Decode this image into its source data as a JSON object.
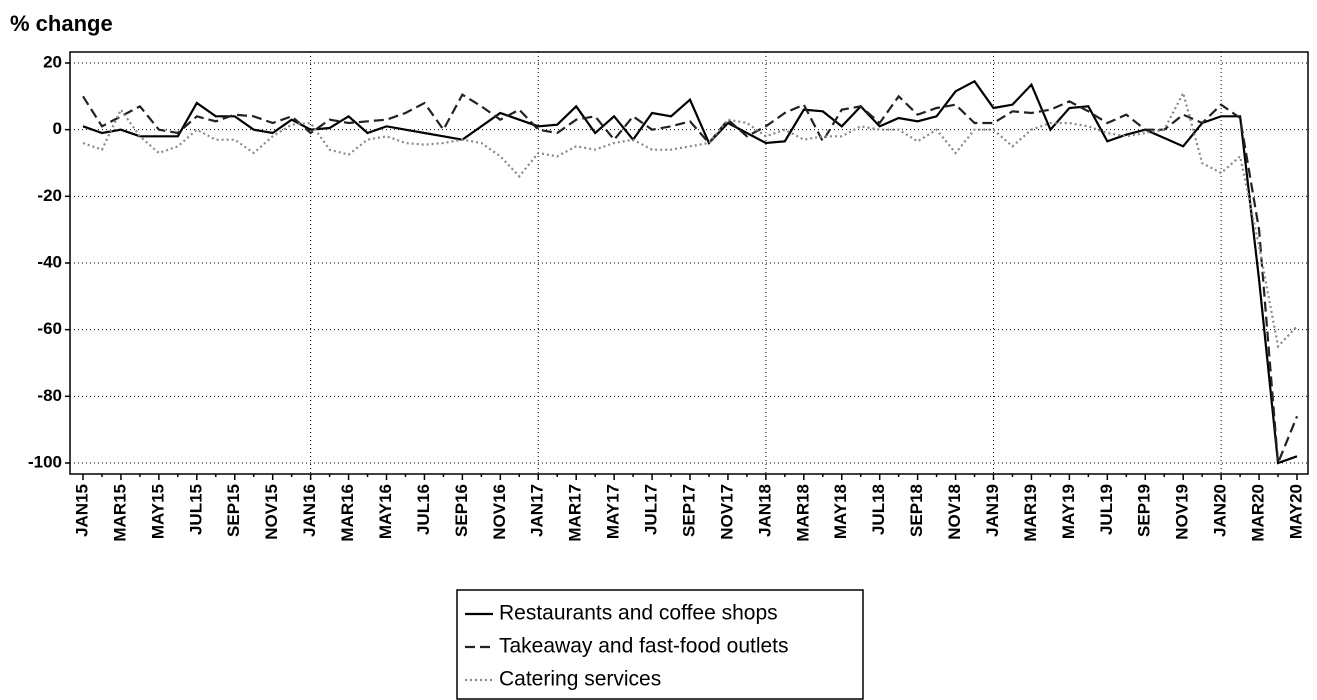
{
  "chart_data": {
    "type": "line",
    "ylabel": "% change",
    "categories": [
      "JAN15",
      null,
      "MAR15",
      null,
      "MAY15",
      null,
      "JUL15",
      null,
      "SEP15",
      null,
      "NOV15",
      null,
      "JAN16",
      null,
      "MAR16",
      null,
      "MAY16",
      null,
      "JUL16",
      null,
      "SEP16",
      null,
      "NOV16",
      null,
      "JAN17",
      null,
      "MAR17",
      null,
      "MAY17",
      null,
      "JUL17",
      null,
      "SEP17",
      null,
      "NOV17",
      null,
      "JAN18",
      null,
      "MAR18",
      null,
      "MAY18",
      null,
      "JUL18",
      null,
      "SEP18",
      null,
      "NOV18",
      null,
      "JAN19",
      null,
      "MAR19",
      null,
      "MAY19",
      null,
      "JUL19",
      null,
      "SEP19",
      null,
      "NOV19",
      null,
      "JAN20",
      null,
      "MAR20",
      null,
      "MAY20"
    ],
    "series": [
      {
        "name": "Restaurants and coffee shops",
        "color": "#000000",
        "dash": "solid",
        "values": [
          1,
          -1,
          0,
          -2,
          -2,
          -2,
          8,
          4,
          4,
          0,
          -1,
          3,
          0,
          0.5,
          4,
          -1,
          1,
          0,
          -1,
          -2,
          -3,
          1,
          5,
          3,
          1,
          1.5,
          7,
          -1,
          4,
          -3,
          5,
          4,
          9,
          -4,
          2,
          -1,
          -4,
          -3.5,
          6,
          5.5,
          1,
          7,
          1,
          3.5,
          2.5,
          4,
          11.5,
          14.5,
          6.5,
          7.5,
          13.5,
          0,
          6.5,
          7,
          -3.5,
          -1.5,
          0,
          -2.5,
          -5,
          2,
          4,
          4,
          -45,
          -100,
          -98
        ]
      },
      {
        "name": "Takeaway and fast-food outlets",
        "color": "#222222",
        "dash": "dashed",
        "values": [
          10,
          1,
          4,
          7,
          0,
          -1,
          4,
          2.5,
          4.5,
          4,
          2,
          4,
          -1,
          3,
          2,
          2.5,
          3,
          5,
          8,
          0,
          10.5,
          7,
          3,
          6,
          0,
          -1,
          3,
          4,
          -3,
          4,
          0,
          1,
          2.5,
          -4,
          3,
          -2,
          1,
          5,
          7.5,
          -3.5,
          6,
          7,
          2,
          10,
          4.5,
          6.5,
          7.5,
          2,
          2,
          5.5,
          5,
          6,
          8.5,
          5.5,
          2,
          4.5,
          0,
          0,
          4.5,
          2,
          7.5,
          3.5,
          -30,
          -100,
          -86
        ]
      },
      {
        "name": "Catering services",
        "color": "#888888",
        "dash": "dotted",
        "values": [
          -4,
          -6,
          6,
          -2,
          -7,
          -5,
          0,
          -3,
          -3,
          -7,
          -2,
          1.5,
          2,
          -6,
          -7.5,
          -3,
          -2,
          -4,
          -4.5,
          -4,
          -3,
          -4,
          -8,
          -14,
          -7,
          -8,
          -5,
          -6,
          -4,
          -3,
          -6,
          -6,
          -5,
          -4,
          3,
          2,
          -2,
          0,
          -3,
          -2,
          -2,
          1,
          0,
          0,
          -3.5,
          0,
          -7,
          0,
          0,
          -5,
          0,
          2,
          2,
          1,
          -1,
          -2,
          -1,
          0,
          11,
          -10,
          -13,
          -8,
          -35,
          -65,
          -59
        ]
      }
    ],
    "ylim": [
      -103.3,
      23.3
    ],
    "yticks": [
      20,
      0,
      -20,
      -40,
      -60,
      -80,
      -100
    ],
    "grid": true,
    "legend": "bottom"
  }
}
